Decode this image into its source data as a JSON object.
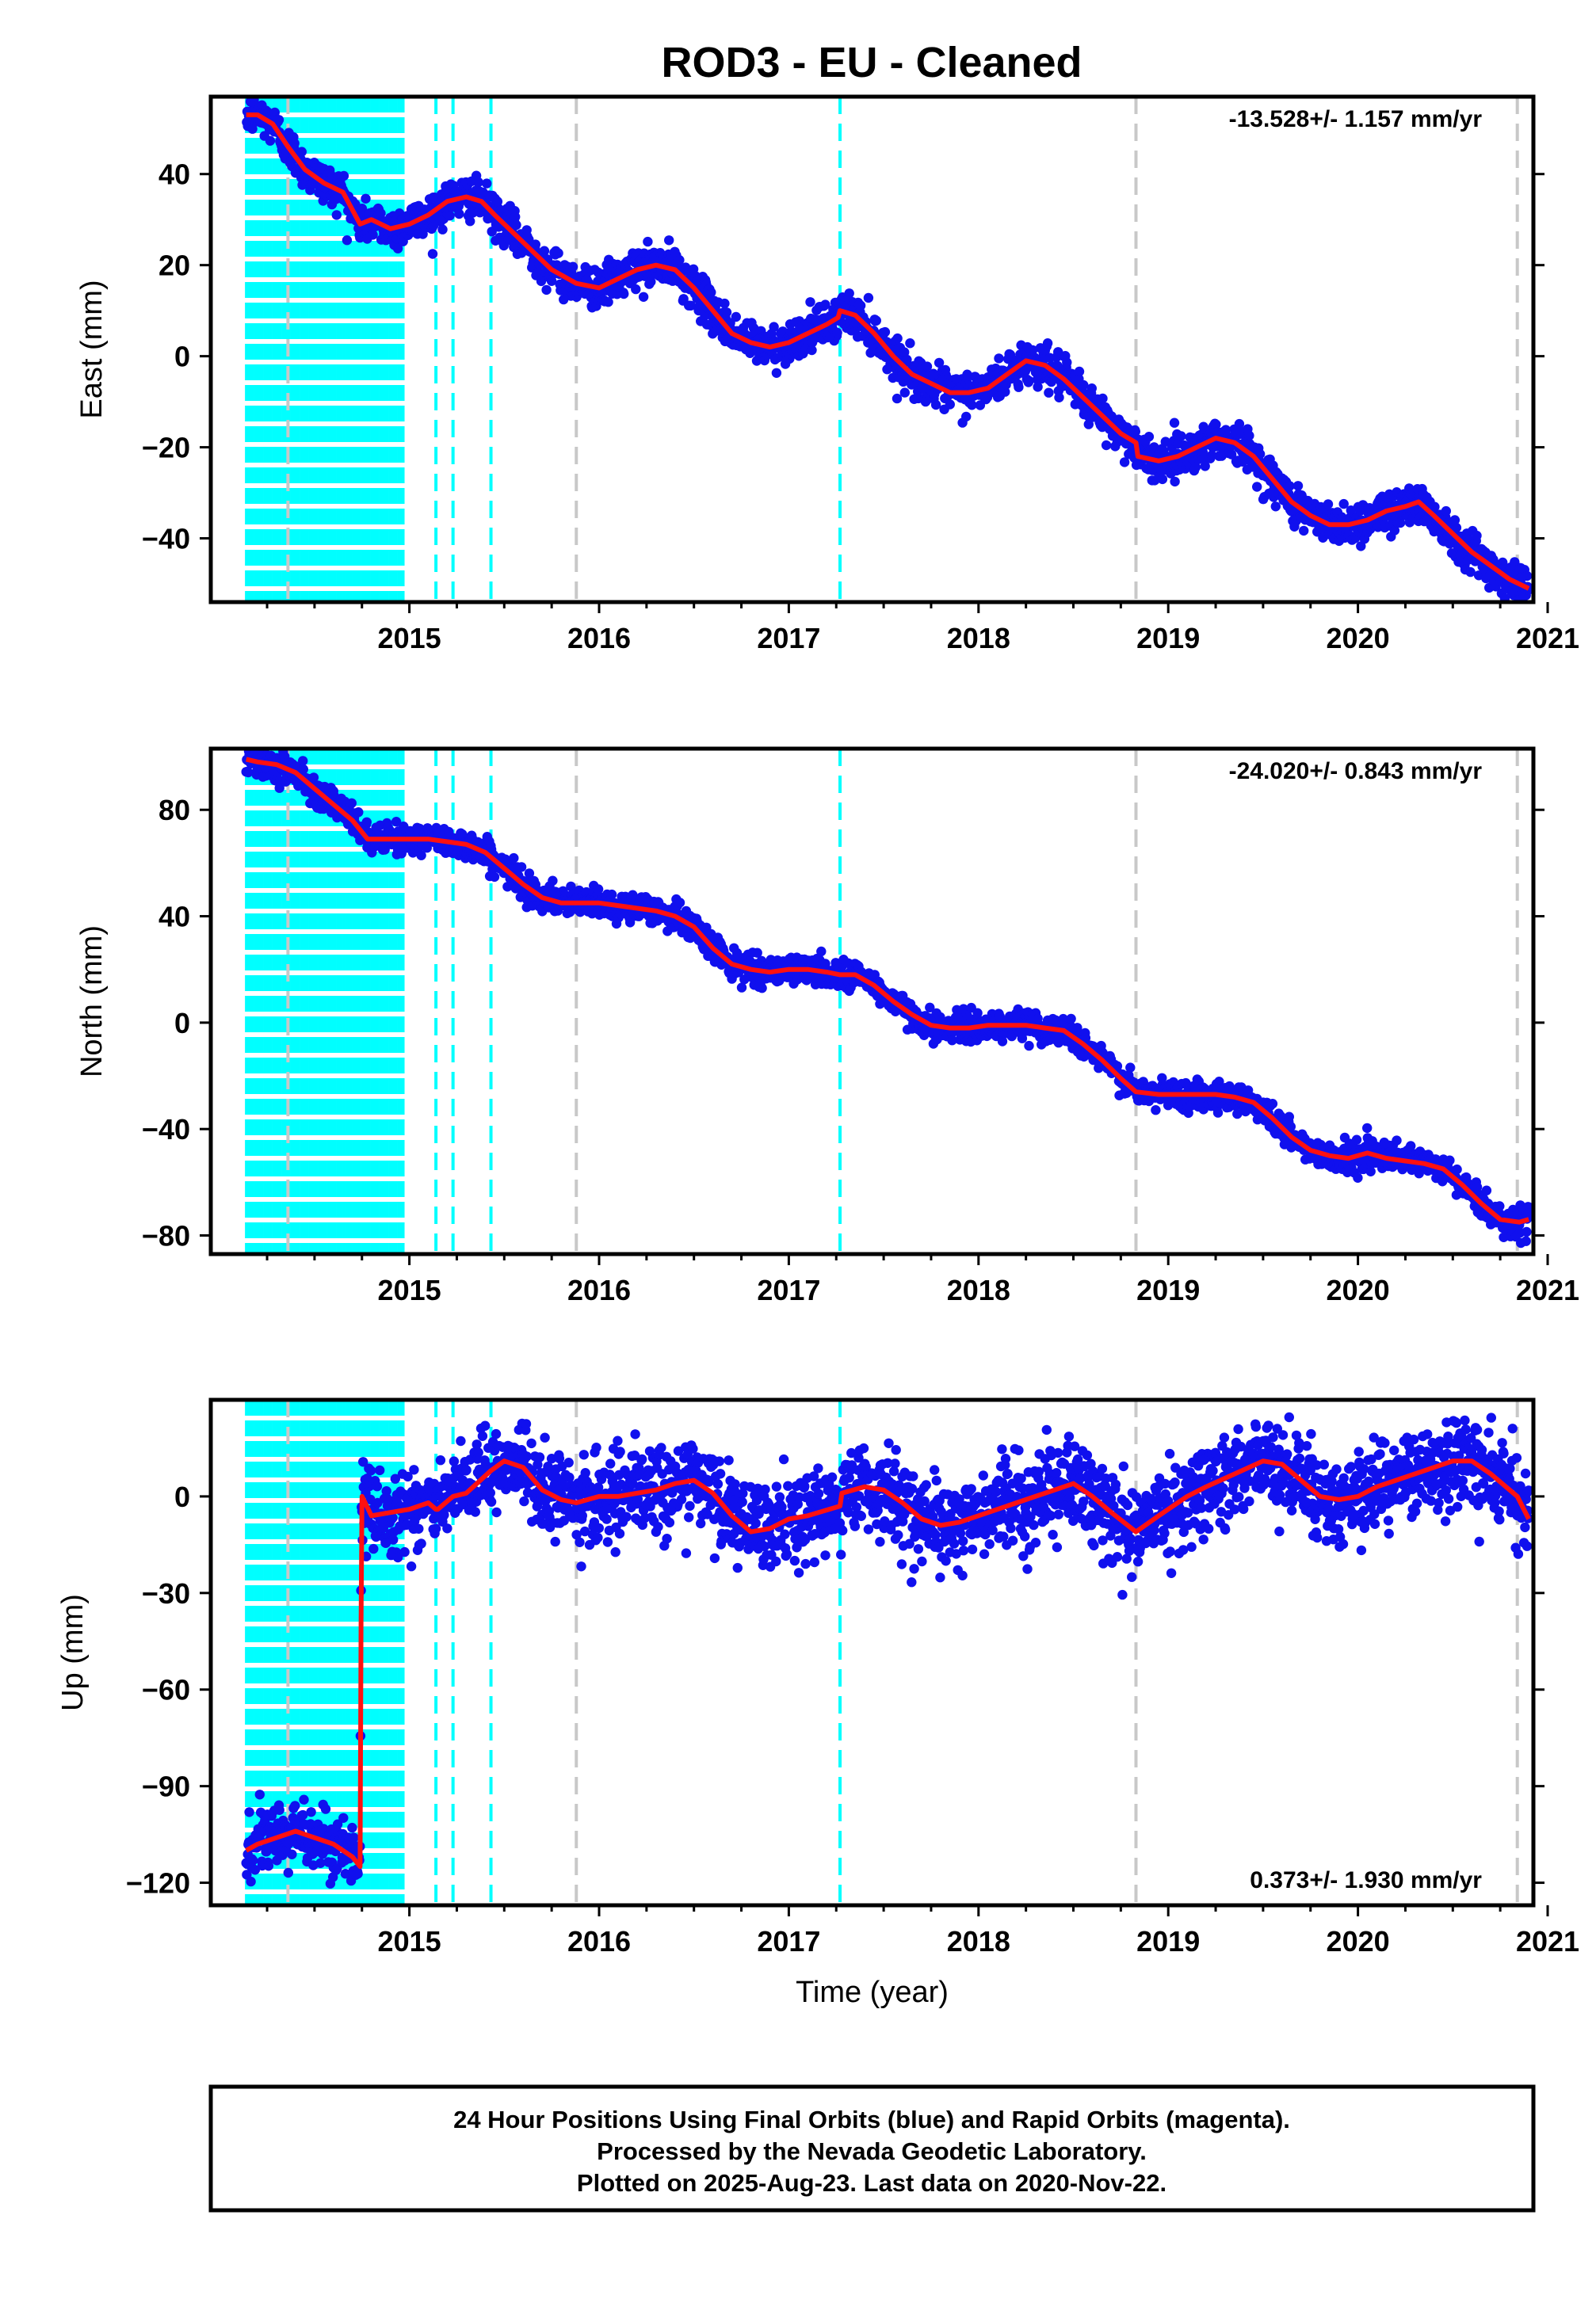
{
  "title": "ROD3  - EU - Cleaned",
  "colors": {
    "final_orbits": "#1010ee",
    "model": "#ff1010",
    "cyan_events": "#00ffff",
    "gray_events": "#c8c8c8",
    "frame": "#000000"
  },
  "footer": {
    "line1": "24 Hour Positions Using Final Orbits (blue) and Rapid Orbits (magenta).",
    "line2": "Processed by the Nevada Geodetic Laboratory.",
    "line3": "Plotted on 2025-Aug-23. Last data on 2020-Nov-22."
  },
  "chart_data": [
    {
      "type": "scatter",
      "component": "East",
      "ylabel": "East (mm)",
      "xlabel": "",
      "xlim": [
        2014.0,
        2021.0
      ],
      "ylim": [
        -54,
        57
      ],
      "xticks": [
        2015,
        2016,
        2017,
        2018,
        2019,
        2020,
        2021
      ],
      "yticks": [
        40,
        20,
        0,
        -20,
        -40
      ],
      "ytick_labels": [
        "40",
        "20",
        "0",
        "−20",
        "−40"
      ],
      "rate_label": "-13.528+/- 1.157 mm/yr",
      "rate_position": "top-right",
      "cyan_dense_range": [
        2014.14,
        2014.97
      ],
      "cyan_event_lines": [
        2015.14,
        2015.23,
        2015.43,
        2017.27
      ],
      "gray_event_lines": [
        2014.36,
        2015.88,
        2018.83,
        2020.84
      ],
      "model_series": {
        "name": "model",
        "x": [
          2014.14,
          2014.2,
          2014.28,
          2014.36,
          2014.45,
          2014.55,
          2014.65,
          2014.74,
          2014.8,
          2014.9,
          2015.0,
          2015.1,
          2015.2,
          2015.3,
          2015.38,
          2015.45,
          2015.55,
          2015.65,
          2015.75,
          2015.88,
          2016.0,
          2016.1,
          2016.2,
          2016.3,
          2016.4,
          2016.5,
          2016.6,
          2016.7,
          2016.8,
          2016.9,
          2017.0,
          2017.1,
          2017.2,
          2017.26,
          2017.27,
          2017.35,
          2017.45,
          2017.55,
          2017.65,
          2017.75,
          2017.85,
          2017.95,
          2018.05,
          2018.15,
          2018.25,
          2018.35,
          2018.45,
          2018.55,
          2018.65,
          2018.75,
          2018.83,
          2018.84,
          2018.95,
          2019.05,
          2019.15,
          2019.25,
          2019.35,
          2019.45,
          2019.55,
          2019.65,
          2019.75,
          2019.85,
          2019.95,
          2020.05,
          2020.15,
          2020.25,
          2020.32,
          2020.4,
          2020.5,
          2020.6,
          2020.7,
          2020.8,
          2020.9
        ],
        "y": [
          53,
          53,
          51,
          46,
          41,
          38,
          36,
          29,
          30,
          28,
          29,
          31,
          34,
          35,
          34,
          31,
          27,
          23,
          19,
          16,
          15,
          17,
          19,
          20,
          19,
          15,
          10,
          5,
          3,
          2,
          3,
          5,
          7,
          8.5,
          10,
          9,
          5,
          0,
          -4,
          -6,
          -8,
          -8,
          -7,
          -4,
          -1,
          -2,
          -5,
          -9,
          -13,
          -17,
          -19,
          -22,
          -23,
          -22,
          -20,
          -18,
          -19,
          -22,
          -27,
          -32,
          -35,
          -37,
          -37,
          -36,
          -34,
          -33,
          -32,
          -35,
          -39,
          -43,
          -46,
          -49,
          -51
        ]
      },
      "final_orbit_points": "dense daily scatter (blue) following the model trend within about ±3 mm, approx. 2014.14–2020.9"
    },
    {
      "type": "scatter",
      "component": "North",
      "ylabel": "North (mm)",
      "xlabel": "",
      "xlim": [
        2014.0,
        2021.0
      ],
      "ylim": [
        -87,
        103
      ],
      "xticks": [
        2015,
        2016,
        2017,
        2018,
        2019,
        2020,
        2021
      ],
      "yticks": [
        80,
        40,
        0,
        -40,
        -80
      ],
      "ytick_labels": [
        "80",
        "40",
        "0",
        "−40",
        "−80"
      ],
      "rate_label": "-24.020+/- 0.843 mm/yr",
      "rate_position": "top-right",
      "cyan_dense_range": [
        2014.14,
        2014.97
      ],
      "cyan_event_lines": [
        2015.14,
        2015.23,
        2015.43,
        2017.27
      ],
      "gray_event_lines": [
        2014.36,
        2015.88,
        2018.83,
        2020.84
      ],
      "model_series": {
        "name": "model",
        "x": [
          2014.14,
          2014.2,
          2014.3,
          2014.4,
          2014.5,
          2014.6,
          2014.7,
          2014.78,
          2014.9,
          2015.0,
          2015.1,
          2015.2,
          2015.3,
          2015.4,
          2015.5,
          2015.6,
          2015.7,
          2015.8,
          2015.9,
          2016.0,
          2016.1,
          2016.2,
          2016.3,
          2016.4,
          2016.5,
          2016.6,
          2016.7,
          2016.8,
          2016.9,
          2017.0,
          2017.1,
          2017.2,
          2017.27,
          2017.35,
          2017.45,
          2017.55,
          2017.65,
          2017.75,
          2017.85,
          2017.95,
          2018.05,
          2018.15,
          2018.25,
          2018.35,
          2018.45,
          2018.55,
          2018.65,
          2018.75,
          2018.83,
          2018.95,
          2019.05,
          2019.15,
          2019.25,
          2019.35,
          2019.45,
          2019.55,
          2019.65,
          2019.75,
          2019.85,
          2019.95,
          2020.05,
          2020.15,
          2020.25,
          2020.35,
          2020.45,
          2020.55,
          2020.65,
          2020.75,
          2020.85,
          2020.9
        ],
        "y": [
          99,
          98,
          97,
          94,
          88,
          82,
          76,
          69,
          69,
          69,
          69,
          68,
          67,
          64,
          58,
          52,
          47,
          45,
          45,
          45,
          44,
          43,
          42,
          40,
          36,
          28,
          22,
          20,
          19,
          20,
          20,
          19,
          18,
          18,
          14,
          8,
          3,
          -1,
          -2,
          -2,
          -1,
          -1,
          -1,
          -2,
          -3,
          -8,
          -14,
          -21,
          -26,
          -27,
          -27,
          -27,
          -27,
          -28,
          -30,
          -36,
          -43,
          -48,
          -50,
          -51,
          -49,
          -51,
          -52,
          -53,
          -55,
          -61,
          -68,
          -74,
          -75,
          -74
        ]
      },
      "final_orbit_points": "dense daily scatter (blue) following the model trend within about ±4 mm, approx. 2014.14–2020.9"
    },
    {
      "type": "scatter",
      "component": "Up",
      "ylabel": "Up (mm)",
      "xlabel": "Time (year)",
      "xlim": [
        2014.0,
        2021.0
      ],
      "ylim": [
        -127,
        30
      ],
      "xticks": [
        2015,
        2016,
        2017,
        2018,
        2019,
        2020,
        2021
      ],
      "yticks": [
        0,
        -30,
        -60,
        -90,
        -120
      ],
      "ytick_labels": [
        "0",
        "−30",
        "−60",
        "−90",
        "−120"
      ],
      "rate_label": "0.373+/- 1.930 mm/yr",
      "rate_position": "bottom-right",
      "cyan_dense_range": [
        2014.14,
        2014.97
      ],
      "cyan_event_lines": [
        2015.14,
        2015.23,
        2015.43,
        2017.27
      ],
      "gray_event_lines": [
        2014.36,
        2015.88,
        2018.83,
        2020.84
      ],
      "model_series": {
        "name": "model",
        "x": [
          2014.14,
          2014.2,
          2014.3,
          2014.4,
          2014.5,
          2014.6,
          2014.7,
          2014.74,
          2014.745,
          2014.75,
          2014.8,
          2014.9,
          2015.0,
          2015.1,
          2015.14,
          2015.15,
          2015.23,
          2015.3,
          2015.43,
          2015.5,
          2015.6,
          2015.7,
          2015.8,
          2015.88,
          2016.0,
          2016.1,
          2016.2,
          2016.3,
          2016.4,
          2016.5,
          2016.6,
          2016.7,
          2016.8,
          2016.9,
          2017.0,
          2017.1,
          2017.27,
          2017.28,
          2017.4,
          2017.5,
          2017.6,
          2017.7,
          2017.8,
          2017.9,
          2018.0,
          2018.1,
          2018.2,
          2018.3,
          2018.4,
          2018.5,
          2018.6,
          2018.7,
          2018.83,
          2018.95,
          2019.1,
          2019.2,
          2019.35,
          2019.5,
          2019.6,
          2019.7,
          2019.8,
          2019.9,
          2020.0,
          2020.1,
          2020.2,
          2020.3,
          2020.4,
          2020.5,
          2020.6,
          2020.7,
          2020.84,
          2020.9
        ],
        "y": [
          -110,
          -108,
          -106,
          -104,
          -106,
          -108,
          -112,
          -115,
          -40,
          0,
          -6,
          -5,
          -4,
          -2,
          -4,
          -4,
          0,
          1,
          8,
          11,
          9,
          2,
          -1,
          -2,
          0,
          0,
          1,
          2,
          4,
          5,
          1,
          -6,
          -11,
          -10,
          -7,
          -6,
          -3,
          1,
          3,
          2,
          -2,
          -7,
          -9,
          -8,
          -6,
          -4,
          -2,
          0,
          2,
          4,
          0,
          -5,
          -11,
          -6,
          0,
          3,
          7,
          11,
          10,
          5,
          0,
          -1,
          0,
          3,
          5,
          7,
          9,
          11,
          11,
          7,
          0,
          -7
        ]
      },
      "final_orbit_points": "dense daily scatter (blue) with about ±8 mm noise around the model, plus an offset segment near −110 mm before 2014.75"
    }
  ]
}
